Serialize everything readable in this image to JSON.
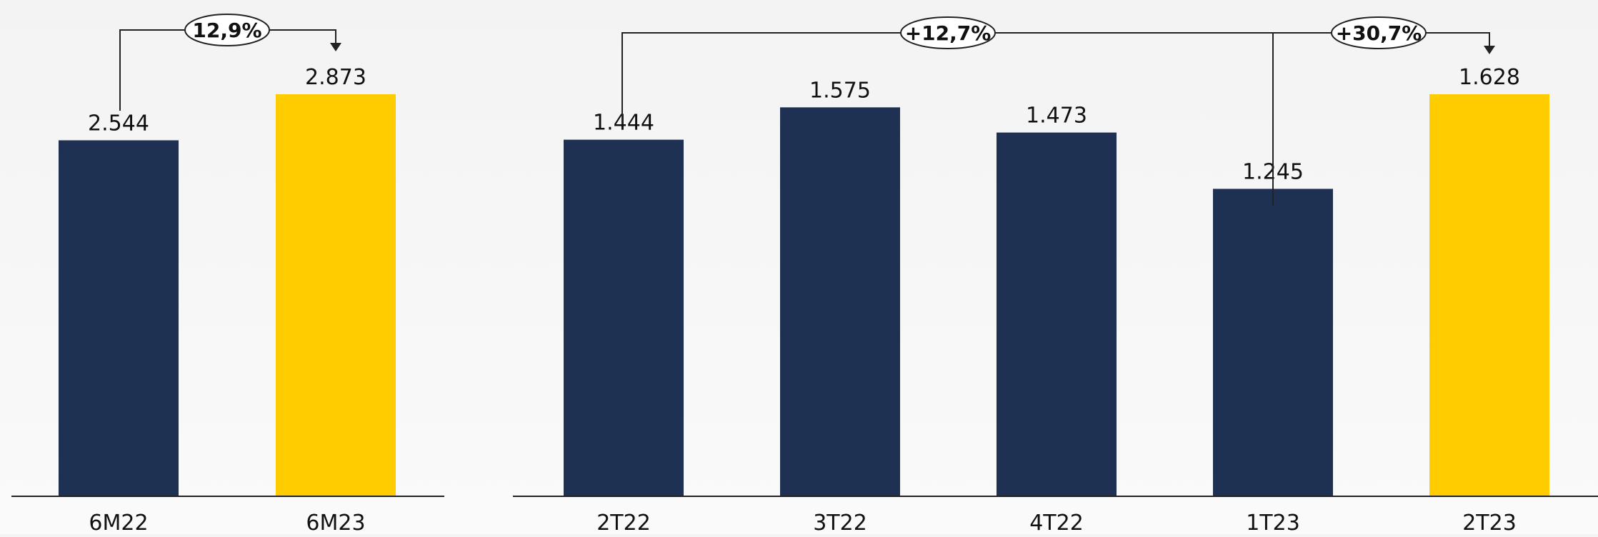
{
  "colors": {
    "navy": "#1f3152",
    "yellow": "#ffcc00",
    "axis": "#222222",
    "text": "#111111"
  },
  "chart_data": [
    {
      "type": "bar",
      "categories": [
        "6M22",
        "6M23"
      ],
      "values": [
        2544,
        2873
      ],
      "value_labels": [
        "2.544",
        "2.873"
      ],
      "bar_colors": [
        "navy",
        "yellow"
      ],
      "ylim": [
        0,
        2873
      ],
      "xlabel": "",
      "ylabel": "",
      "grid": false,
      "annotations": [
        {
          "text": "12,9%",
          "from": "6M22",
          "to": "6M23"
        }
      ]
    },
    {
      "type": "bar",
      "categories": [
        "2T22",
        "3T22",
        "4T22",
        "1T23",
        "2T23"
      ],
      "values": [
        1444,
        1575,
        1473,
        1245,
        1628
      ],
      "value_labels": [
        "1.444",
        "1.575",
        "1.473",
        "1.245",
        "1.628"
      ],
      "bar_colors": [
        "navy",
        "navy",
        "navy",
        "navy",
        "yellow"
      ],
      "ylim": [
        0,
        1628
      ],
      "xlabel": "",
      "ylabel": "",
      "grid": false,
      "annotations": [
        {
          "text": "+12,7%",
          "from": "2T22",
          "to": "2T23"
        },
        {
          "text": "+30,7%",
          "from": "1T23",
          "to": "2T23"
        }
      ]
    }
  ]
}
